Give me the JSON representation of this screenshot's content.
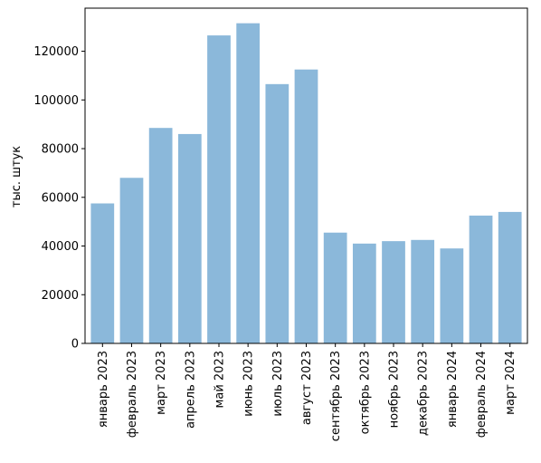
{
  "chart_data": {
    "type": "bar",
    "title": "",
    "xlabel": "",
    "ylabel": "тыс. штук",
    "categories": [
      "январь 2023",
      "февраль 2023",
      "март 2023",
      "апрель 2023",
      "май 2023",
      "июнь 2023",
      "июль 2023",
      "август 2023",
      "сентябрь 2023",
      "октябрь 2023",
      "ноябрь 2023",
      "декабрь 2023",
      "январь 2024",
      "февраль 2024",
      "март 2024"
    ],
    "values": [
      57500,
      68000,
      88500,
      86000,
      126500,
      131500,
      106500,
      112500,
      45500,
      41000,
      42000,
      42500,
      39000,
      52500,
      54000
    ],
    "ylim": [
      0,
      137700
    ],
    "yticks": [
      0,
      20000,
      40000,
      60000,
      80000,
      100000,
      120000
    ],
    "ytick_labels": [
      "0",
      "20000",
      "40000",
      "60000",
      "80000",
      "100000",
      "120000"
    ],
    "grid": false,
    "colors": {
      "bar": "#8bb8da",
      "axis": "#000000"
    }
  }
}
